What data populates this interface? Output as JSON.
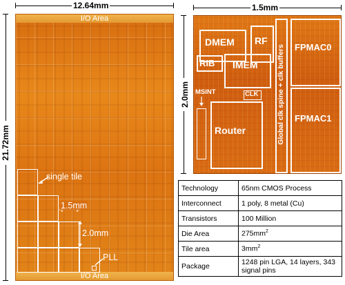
{
  "left_die": {
    "width_label": "12.64mm",
    "height_label": "21.72mm",
    "io_top": "I/O Area",
    "io_bottom": "I/O Area",
    "single_tile": "single tile",
    "tile_width": "1.5mm",
    "tile_height": "2.0mm",
    "pll": "PLL"
  },
  "right_tile": {
    "width_label": "1.5mm",
    "height_label": "2.0mm",
    "blocks": {
      "dmem": "DMEM",
      "rf": "RF",
      "rib": "RIB",
      "imem": "IMEM",
      "msint": "MSINT",
      "clk": "CLK",
      "router": "Router",
      "fpmac0": "FPMAC0",
      "fpmac1": "FPMAC1",
      "spine": "Global clk spine + clk buffers"
    }
  },
  "specs": [
    {
      "key": "Technology",
      "value": "65nm CMOS Process",
      "sup": ""
    },
    {
      "key": "Interconnect",
      "value": "1 poly, 8 metal (Cu)",
      "sup": ""
    },
    {
      "key": "Transistors",
      "value": "100 Million",
      "sup": ""
    },
    {
      "key": "Die Area",
      "value": "275mm",
      "sup": "2"
    },
    {
      "key": "Tile area",
      "value": "3mm",
      "sup": "2"
    },
    {
      "key": "Package",
      "value": "1248 pin LGA, 14 layers, 343 signal pins",
      "sup": ""
    }
  ]
}
